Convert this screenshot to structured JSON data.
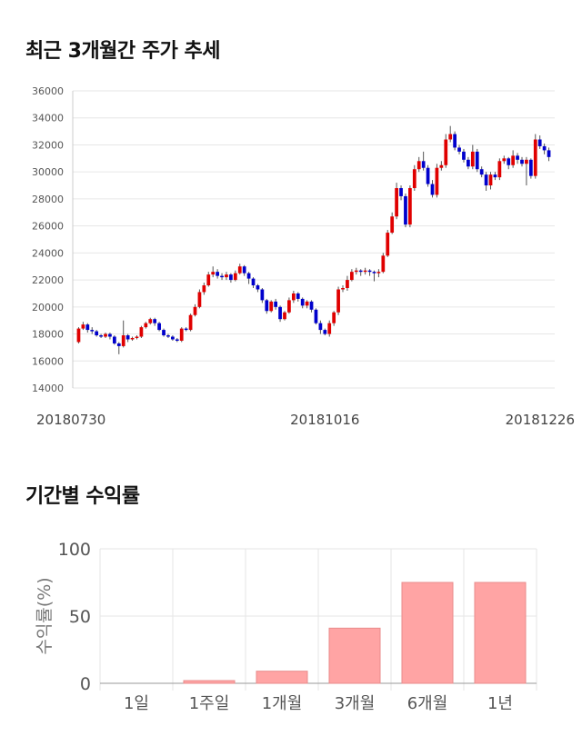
{
  "sections": {
    "price_title": "최근 3개월간 주가 추세",
    "returns_title": "기간별 수익률"
  },
  "chart_data": [
    {
      "type": "candlestick",
      "title": "최근 3개월간 주가 추세",
      "ylim": [
        14000,
        36000
      ],
      "yticks": [
        14000,
        16000,
        18000,
        20000,
        22000,
        24000,
        26000,
        28000,
        30000,
        32000,
        34000,
        36000
      ],
      "xtick_labels": [
        {
          "index": 0,
          "label": "20180730"
        },
        {
          "index": 55,
          "label": "20181016"
        },
        {
          "index": 104,
          "label": "20181226"
        }
      ],
      "grid": true,
      "colors": {
        "up": "#e00000",
        "down": "#0000cc"
      },
      "candles": [
        [
          17400,
          18400,
          17300,
          18500
        ],
        [
          18400,
          18700,
          18300,
          18900
        ],
        [
          18700,
          18300,
          18100,
          18800
        ],
        [
          18300,
          18200,
          18000,
          18500
        ],
        [
          18200,
          17900,
          17800,
          18300
        ],
        [
          17900,
          17800,
          17700,
          18000
        ],
        [
          17800,
          18000,
          17700,
          18100
        ],
        [
          18000,
          17800,
          17600,
          18100
        ],
        [
          17800,
          17300,
          17200,
          17900
        ],
        [
          17300,
          17100,
          16500,
          17400
        ],
        [
          17100,
          17900,
          17000,
          19000
        ],
        [
          17900,
          17600,
          17400,
          18000
        ],
        [
          17600,
          17700,
          17500,
          17800
        ],
        [
          17700,
          17800,
          17600,
          17900
        ],
        [
          17800,
          18500,
          17700,
          18600
        ],
        [
          18500,
          18800,
          18400,
          18900
        ],
        [
          18800,
          19100,
          18700,
          19200
        ],
        [
          19100,
          18800,
          18600,
          19200
        ],
        [
          18800,
          18300,
          18200,
          18900
        ],
        [
          18300,
          17900,
          17800,
          18400
        ],
        [
          17900,
          17800,
          17700,
          18000
        ],
        [
          17800,
          17600,
          17500,
          17900
        ],
        [
          17600,
          17500,
          17400,
          17700
        ],
        [
          17500,
          18400,
          17400,
          18500
        ],
        [
          18400,
          18300,
          18200,
          18500
        ],
        [
          18300,
          19400,
          18200,
          19500
        ],
        [
          19400,
          20000,
          19300,
          20200
        ],
        [
          20000,
          21100,
          19900,
          21300
        ],
        [
          21100,
          21600,
          20900,
          21800
        ],
        [
          21600,
          22400,
          21500,
          22600
        ],
        [
          22400,
          22600,
          22200,
          23000
        ],
        [
          22600,
          22300,
          22100,
          22800
        ],
        [
          22300,
          22200,
          22000,
          22500
        ],
        [
          22200,
          22400,
          22000,
          22600
        ],
        [
          22400,
          22000,
          21800,
          22500
        ],
        [
          22000,
          22500,
          21900,
          22700
        ],
        [
          22500,
          23000,
          22400,
          23200
        ],
        [
          23000,
          22500,
          22300,
          23100
        ],
        [
          22500,
          22100,
          21700,
          22600
        ],
        [
          22100,
          21600,
          21400,
          22200
        ],
        [
          21600,
          21300,
          21100,
          21700
        ],
        [
          21300,
          20500,
          20300,
          21400
        ],
        [
          20500,
          19700,
          19500,
          20600
        ],
        [
          19700,
          20400,
          19600,
          20500
        ],
        [
          20400,
          20000,
          19800,
          20600
        ],
        [
          20000,
          19100,
          18900,
          20100
        ],
        [
          19100,
          19600,
          19000,
          19700
        ],
        [
          19600,
          20500,
          19500,
          20700
        ],
        [
          20500,
          21000,
          20300,
          21200
        ],
        [
          21000,
          20600,
          20400,
          21100
        ],
        [
          20600,
          20100,
          19900,
          20700
        ],
        [
          20100,
          20400,
          19900,
          20500
        ],
        [
          20400,
          19800,
          19600,
          20500
        ],
        [
          19800,
          18800,
          18700,
          19900
        ],
        [
          18800,
          18300,
          18000,
          19000
        ],
        [
          18300,
          18000,
          17900,
          18400
        ],
        [
          18000,
          18800,
          17800,
          19000
        ],
        [
          18800,
          19600,
          18600,
          19700
        ],
        [
          19600,
          21300,
          19400,
          21500
        ],
        [
          21300,
          21400,
          21100,
          21600
        ],
        [
          21400,
          22000,
          21200,
          22300
        ],
        [
          22000,
          22600,
          21900,
          22800
        ],
        [
          22600,
          22700,
          22400,
          22900
        ],
        [
          22700,
          22600,
          22300,
          22800
        ],
        [
          22600,
          22700,
          22400,
          22900
        ],
        [
          22700,
          22600,
          22300,
          22800
        ],
        [
          22600,
          22500,
          21900,
          22700
        ],
        [
          22500,
          22600,
          22200,
          22800
        ],
        [
          22600,
          23800,
          22500,
          24000
        ],
        [
          23800,
          25500,
          23700,
          25700
        ],
        [
          25500,
          26700,
          25400,
          27000
        ],
        [
          26700,
          28800,
          26500,
          29200
        ],
        [
          28800,
          28200,
          27900,
          29000
        ],
        [
          28200,
          26100,
          25900,
          28400
        ],
        [
          26100,
          28800,
          25900,
          29000
        ],
        [
          28800,
          30200,
          28600,
          30500
        ],
        [
          30200,
          30800,
          30000,
          31100
        ],
        [
          30800,
          30300,
          30100,
          31500
        ],
        [
          30300,
          29100,
          28900,
          30500
        ],
        [
          29100,
          28300,
          28100,
          29400
        ],
        [
          28300,
          30300,
          28100,
          30600
        ],
        [
          30300,
          30500,
          30100,
          30800
        ],
        [
          30500,
          32400,
          30300,
          32800
        ],
        [
          32400,
          32800,
          32200,
          33400
        ],
        [
          32800,
          31800,
          31600,
          33000
        ],
        [
          31800,
          31500,
          31300,
          32000
        ],
        [
          31500,
          30900,
          30700,
          31700
        ],
        [
          30900,
          30400,
          30200,
          31100
        ],
        [
          30400,
          31500,
          30200,
          32000
        ],
        [
          31500,
          30200,
          30000,
          31700
        ],
        [
          30200,
          29800,
          29600,
          30400
        ],
        [
          29800,
          29000,
          28600,
          30000
        ],
        [
          29000,
          29800,
          28700,
          30000
        ],
        [
          29800,
          29600,
          29400,
          30000
        ],
        [
          29600,
          30800,
          29400,
          31000
        ],
        [
          30800,
          31000,
          30600,
          31200
        ],
        [
          31000,
          30500,
          30200,
          31100
        ],
        [
          30500,
          31200,
          30300,
          31600
        ],
        [
          31200,
          30900,
          30600,
          31400
        ],
        [
          30900,
          30600,
          30400,
          31100
        ],
        [
          30600,
          30900,
          29000,
          31100
        ],
        [
          30900,
          29700,
          29500,
          31000
        ],
        [
          29700,
          32400,
          29500,
          32800
        ],
        [
          32400,
          31900,
          31700,
          32700
        ],
        [
          31900,
          31600,
          31300,
          32100
        ],
        [
          31600,
          31100,
          30800,
          31800
        ]
      ]
    },
    {
      "type": "bar",
      "title": "기간별 수익률",
      "ylabel": "수익률(%)",
      "ylim": [
        0,
        100
      ],
      "yticks": [
        0,
        50,
        100
      ],
      "categories": [
        "1일",
        "1주일",
        "1개월",
        "3개월",
        "6개월",
        "1년"
      ],
      "values": [
        0,
        2,
        9,
        41,
        75,
        75
      ],
      "colors": {
        "bar": "#ffa4a4",
        "bar_edge": "#e88b8b"
      }
    }
  ]
}
